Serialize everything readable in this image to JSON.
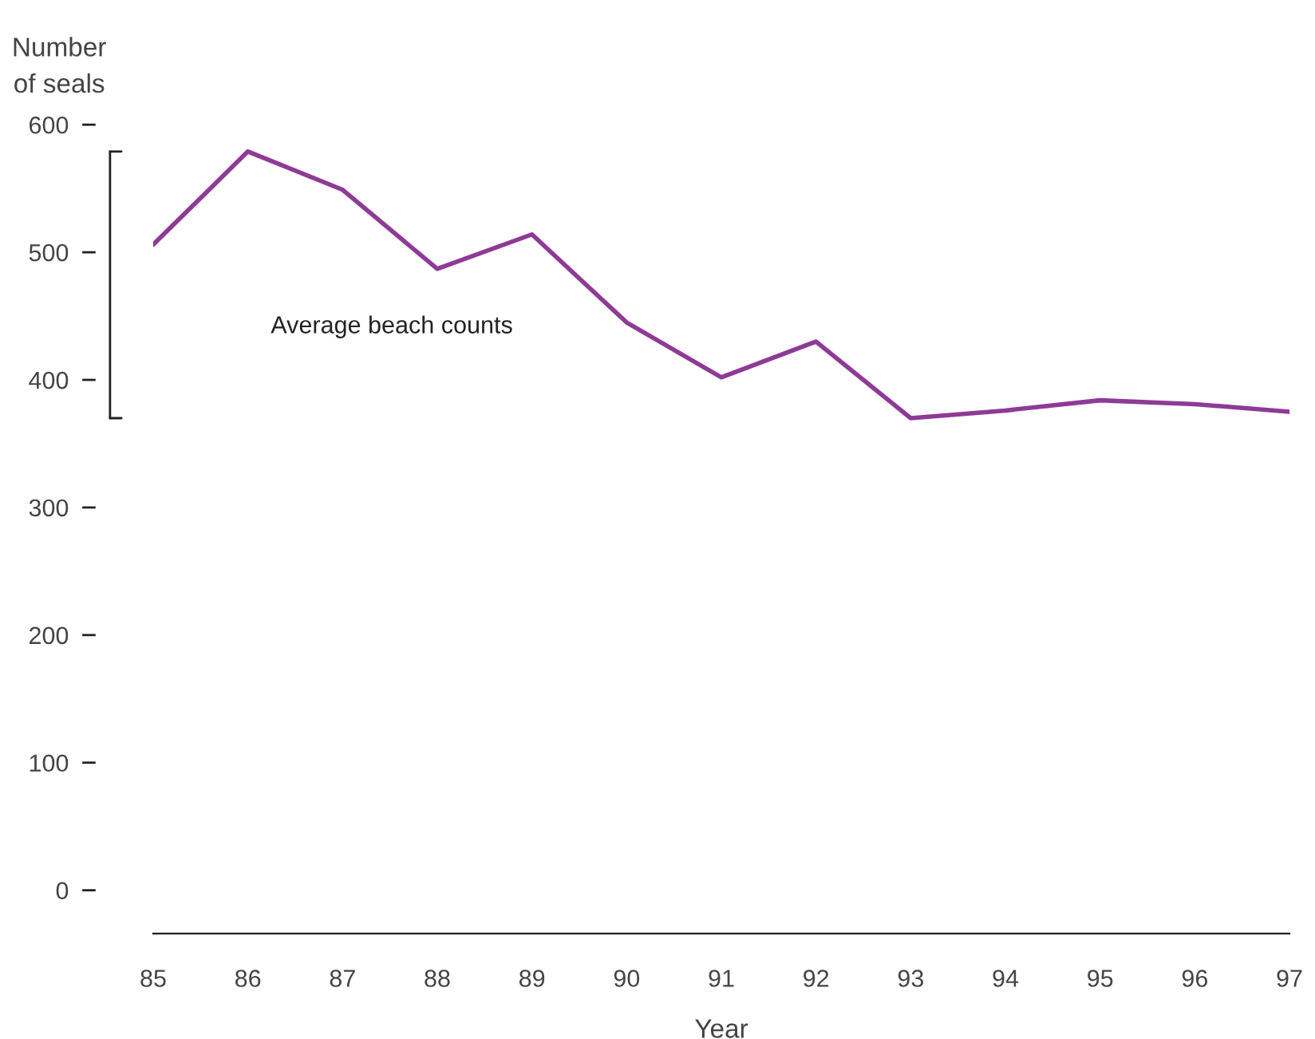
{
  "chart_data": {
    "type": "line",
    "xlabel": "Year",
    "ylabel": "Number\nof seals",
    "x": [
      85,
      86,
      87,
      88,
      89,
      90,
      91,
      92,
      93,
      94,
      95,
      96,
      97
    ],
    "series": [
      {
        "color": "#8e3a96",
        "values": [
          506,
          579,
          549,
          487,
          514,
          445,
          402,
          430,
          370,
          376,
          384,
          381,
          375
        ]
      }
    ],
    "xlim": [
      85,
      97
    ],
    "xticks": [
      85,
      86,
      87,
      88,
      89,
      90,
      91,
      92,
      93,
      94,
      95,
      96,
      97
    ],
    "ylim": [
      -34,
      600
    ],
    "yticks": [
      0,
      100,
      200,
      300,
      400,
      500,
      600
    ],
    "annotations": [
      "Average beach counts"
    ],
    "grid": false,
    "marker": "none",
    "line_style": "solid"
  }
}
